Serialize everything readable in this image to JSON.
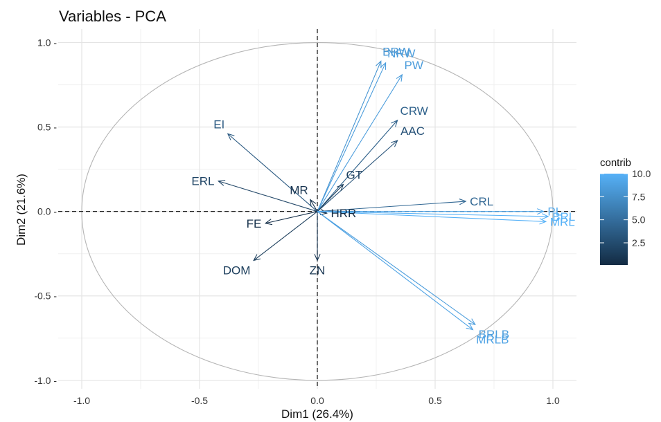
{
  "chart_data": {
    "type": "scatter",
    "title": "Variables - PCA",
    "xlabel": "Dim1 (26.4%)",
    "ylabel": "Dim2 (21.6%)",
    "xlim": [
      -1.1,
      1.1
    ],
    "ylim": [
      -1.05,
      1.08
    ],
    "x_ticks": [
      -1.0,
      -0.5,
      0.0,
      0.5,
      1.0
    ],
    "x_tick_labels": [
      "-1.0",
      "-0.5",
      "0.0",
      "0.5",
      "1.0"
    ],
    "y_ticks": [
      -1.0,
      -0.5,
      0.0,
      0.5,
      1.0
    ],
    "y_tick_labels": [
      "-1.0 -",
      "-0.5 -",
      "0.0 -",
      "0.5 -",
      "1.0 -"
    ],
    "grid": true,
    "correlation_circle": true,
    "legend": {
      "title": "contrib",
      "placement": "right",
      "range": [
        0.1,
        10.0
      ],
      "ticks": [
        2.5,
        5.0,
        7.5,
        10.0
      ],
      "tick_labels": [
        "2.5",
        "5.0",
        "7.5",
        "10.0"
      ],
      "color_low": "#132b43",
      "color_high": "#56b1f7"
    },
    "variables": [
      {
        "name": "BRW",
        "x": 0.27,
        "y": 0.89,
        "contrib": 8.0
      },
      {
        "name": "NRW",
        "x": 0.29,
        "y": 0.88,
        "contrib": 8.5
      },
      {
        "name": "PW",
        "x": 0.36,
        "y": 0.81,
        "contrib": 8.5
      },
      {
        "name": "CRW",
        "x": 0.34,
        "y": 0.54,
        "contrib": 4.0
      },
      {
        "name": "AAC",
        "x": 0.34,
        "y": 0.42,
        "contrib": 3.0
      },
      {
        "name": "GT",
        "x": 0.11,
        "y": 0.16,
        "contrib": 1.5
      },
      {
        "name": "MR",
        "x": -0.03,
        "y": 0.07,
        "contrib": 0.8
      },
      {
        "name": "EI",
        "x": -0.38,
        "y": 0.46,
        "contrib": 3.5
      },
      {
        "name": "ERL",
        "x": -0.42,
        "y": 0.18,
        "contrib": 2.0
      },
      {
        "name": "FE",
        "x": -0.22,
        "y": -0.07,
        "contrib": 0.5
      },
      {
        "name": "DOM",
        "x": -0.27,
        "y": -0.29,
        "contrib": 1.5
      },
      {
        "name": "ZN",
        "x": 0.0,
        "y": -0.29,
        "contrib": 1.0
      },
      {
        "name": "HRR",
        "x": 0.04,
        "y": -0.01,
        "contrib": 0.2
      },
      {
        "name": "CRL",
        "x": 0.63,
        "y": 0.06,
        "contrib": 4.5
      },
      {
        "name": "PL",
        "x": 0.96,
        "y": 0.0,
        "contrib": 9.5
      },
      {
        "name": "BRL",
        "x": 0.98,
        "y": -0.03,
        "contrib": 10.0
      },
      {
        "name": "MRL",
        "x": 0.97,
        "y": -0.06,
        "contrib": 10.0
      },
      {
        "name": "BRLB",
        "x": 0.67,
        "y": -0.67,
        "contrib": 8.5
      },
      {
        "name": "MRLB",
        "x": 0.66,
        "y": -0.7,
        "contrib": 9.0
      }
    ]
  }
}
